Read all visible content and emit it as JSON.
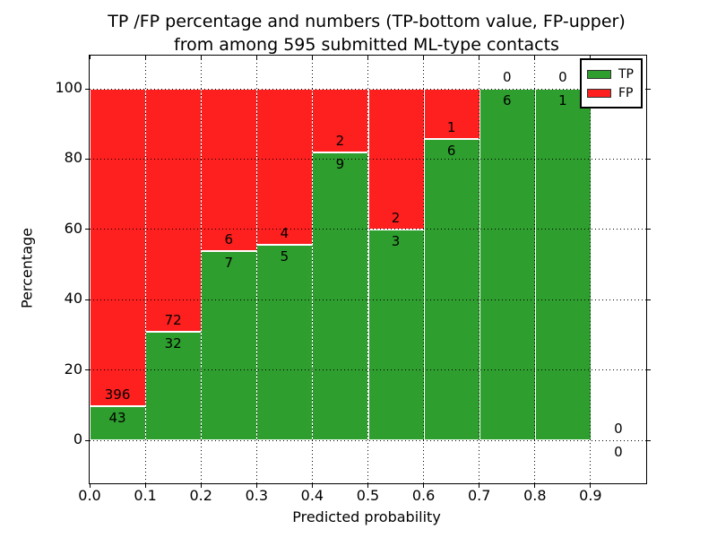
{
  "chart_data": {
    "type": "bar",
    "stacked": true,
    "title_line1": "TP /FP percentage and numbers (TP-bottom value, FP-upper)",
    "title_line2": "from among 595 submitted ML-type contacts",
    "xlabel": "Predicted probability",
    "ylabel": "Percentage",
    "x_tick_labels": [
      "0.0",
      "0.1",
      "0.2",
      "0.3",
      "0.4",
      "0.5",
      "0.6",
      "0.7",
      "0.8",
      "0.9"
    ],
    "y_tick_values": [
      0,
      20,
      40,
      60,
      80,
      100
    ],
    "xlim": [
      0.0,
      1.0
    ],
    "ylim": [
      0,
      100
    ],
    "grid": "dotted black, both axes, drawn over bars",
    "total_contacts": 595,
    "bin_width": 0.1,
    "categories": [
      "0.0-0.1",
      "0.1-0.2",
      "0.2-0.3",
      "0.3-0.4",
      "0.4-0.5",
      "0.5-0.6",
      "0.6-0.7",
      "0.7-0.8",
      "0.8-0.9",
      "0.9-1.0"
    ],
    "series": [
      {
        "name": "TP",
        "color": "#2e9e2e",
        "values": [
          43,
          32,
          7,
          5,
          9,
          3,
          6,
          6,
          1,
          0
        ]
      },
      {
        "name": "FP",
        "color": "#fe1f1f",
        "values": [
          396,
          72,
          6,
          4,
          2,
          2,
          1,
          0,
          0,
          0
        ]
      }
    ],
    "tp_percentages": [
      9.8,
      30.8,
      53.8,
      55.6,
      81.8,
      60.0,
      85.7,
      100.0,
      100.0,
      0.0
    ],
    "legend": {
      "position": "upper-right",
      "entries": [
        {
          "label": "TP",
          "color": "#2e9e2e"
        },
        {
          "label": "FP",
          "color": "#fe1f1f"
        }
      ]
    }
  },
  "colors": {
    "tp": "#2e9e2e",
    "fp": "#fe1f1f",
    "background": "#ffffff",
    "text": "#000000",
    "grid": "#000000",
    "bar_edge": "#ffffff"
  }
}
